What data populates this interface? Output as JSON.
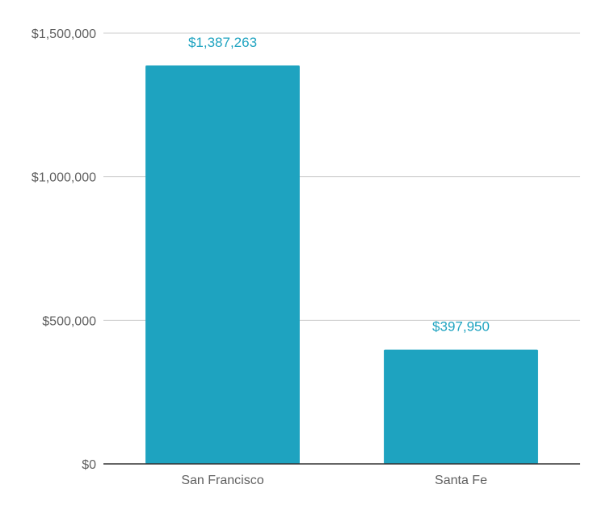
{
  "chart_data": {
    "type": "bar",
    "categories": [
      "San Francisco",
      "Santa Fe"
    ],
    "values": [
      1387263,
      397950
    ],
    "data_labels": [
      "$1,387,263",
      "$397,950"
    ],
    "y_ticks": [
      0,
      500000,
      1000000,
      1500000
    ],
    "y_tick_labels": [
      "$0",
      "$500,000",
      "$1,000,000",
      "$1,500,000"
    ],
    "ylim": [
      0,
      1500000
    ],
    "title": "",
    "xlabel": "",
    "ylabel": "",
    "grid": true,
    "legend": "none",
    "colors": {
      "bar": "#1ea3c0",
      "label": "#1ea3c0",
      "grid": "#cccccc",
      "axis": "#333333",
      "tick_text": "#5f5f5f"
    }
  }
}
